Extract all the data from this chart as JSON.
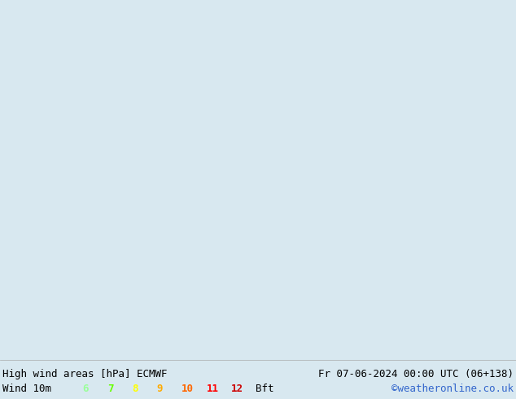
{
  "title_left": "High wind areas [hPa] ECMWF",
  "title_right": "Fr 07-06-2024 00:00 UTC (06+138)",
  "subtitle_left": "Wind 10m",
  "credit": "©weatheronline.co.uk",
  "legend_values": [
    "6",
    "7",
    "8",
    "9",
    "10",
    "11",
    "12",
    "Bft"
  ],
  "legend_colors": [
    "#99ff99",
    "#66ff00",
    "#ffff00",
    "#ffaa00",
    "#ff6600",
    "#ff0000",
    "#cc0000",
    "#000000"
  ],
  "bg_color": "#d8e8f0",
  "land_color": "#c8e8c8",
  "border_color": "#888888",
  "title_fontsize": 9,
  "legend_fontsize": 9,
  "figsize": [
    6.34,
    4.9
  ],
  "dpi": 100,
  "map_bg": "#dce8f0",
  "bottom_bar_color": "#ffffff",
  "bottom_bar_height": 0.1
}
